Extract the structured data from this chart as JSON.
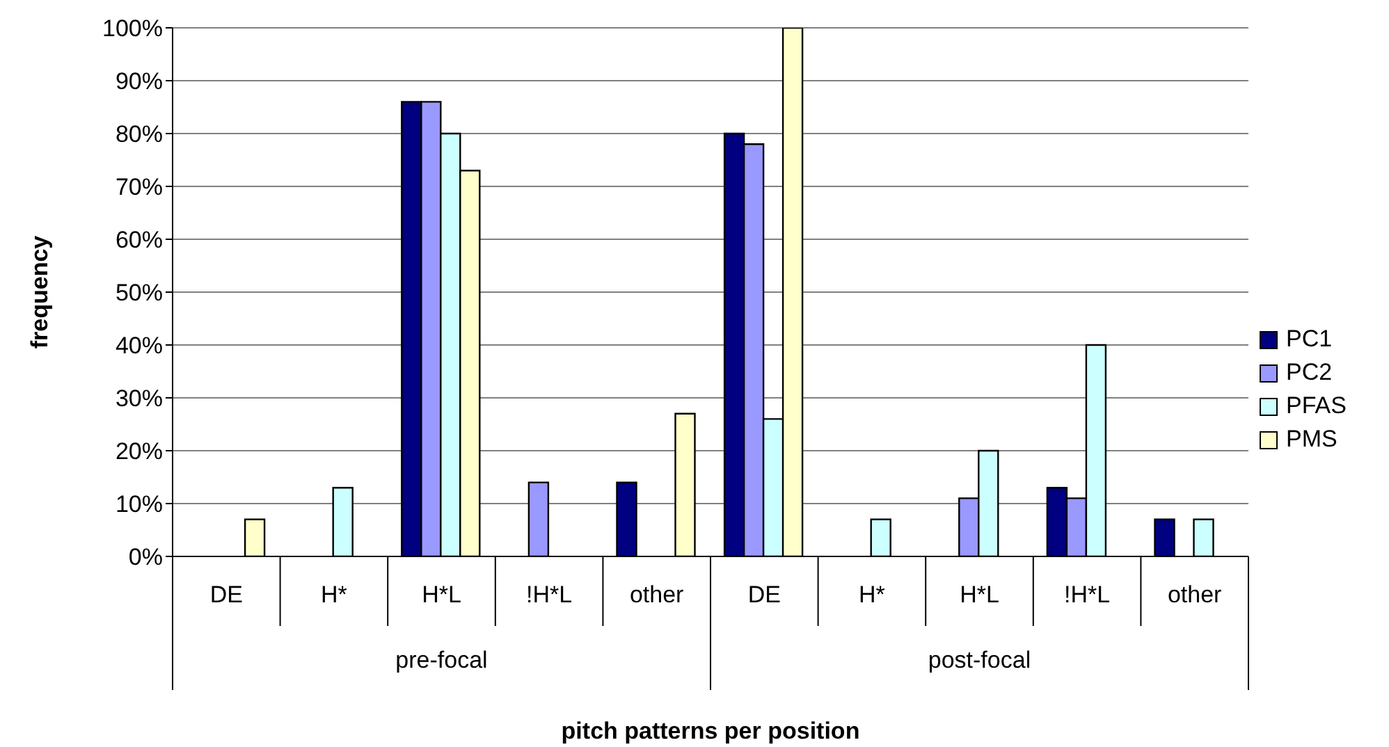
{
  "chart_data": {
    "type": "bar",
    "xlabel": "pitch patterns per position",
    "ylabel": "frequency",
    "categories": [
      "DE",
      "H*",
      "H*L",
      "!H*L",
      "other",
      "DE",
      "H*",
      "H*L",
      "!H*L",
      "other"
    ],
    "series": [
      {
        "name": "PC1",
        "color": "#000080",
        "values": [
          0,
          0,
          86,
          0,
          14,
          80,
          0,
          0,
          13,
          7
        ]
      },
      {
        "name": "PC2",
        "color": "#9999ff",
        "values": [
          0,
          0,
          86,
          14,
          0,
          78,
          0,
          11,
          11,
          0
        ]
      },
      {
        "name": "PFAS",
        "color": "#ccffff",
        "values": [
          0,
          13,
          80,
          0,
          0,
          26,
          7,
          20,
          40,
          7
        ]
      },
      {
        "name": "PMS",
        "color": "#ffffcc",
        "values": [
          7,
          0,
          73,
          0,
          27,
          100,
          0,
          0,
          0,
          0
        ]
      }
    ],
    "annotations": [
      "pre-focal",
      "post-focal"
    ],
    "ylim": [
      0,
      100
    ],
    "yticks": [
      {
        "value": 0,
        "label": "0%"
      },
      {
        "value": 10,
        "label": "10%"
      },
      {
        "value": 20,
        "label": "20%"
      },
      {
        "value": 30,
        "label": "30%"
      },
      {
        "value": 40,
        "label": "40%"
      },
      {
        "value": 50,
        "label": "50%"
      },
      {
        "value": 60,
        "label": "60%"
      },
      {
        "value": 70,
        "label": "70%"
      },
      {
        "value": 80,
        "label": "80%"
      },
      {
        "value": 90,
        "label": "90%"
      },
      {
        "value": 100,
        "label": "100%"
      }
    ],
    "grid": "y",
    "legend": "right"
  }
}
